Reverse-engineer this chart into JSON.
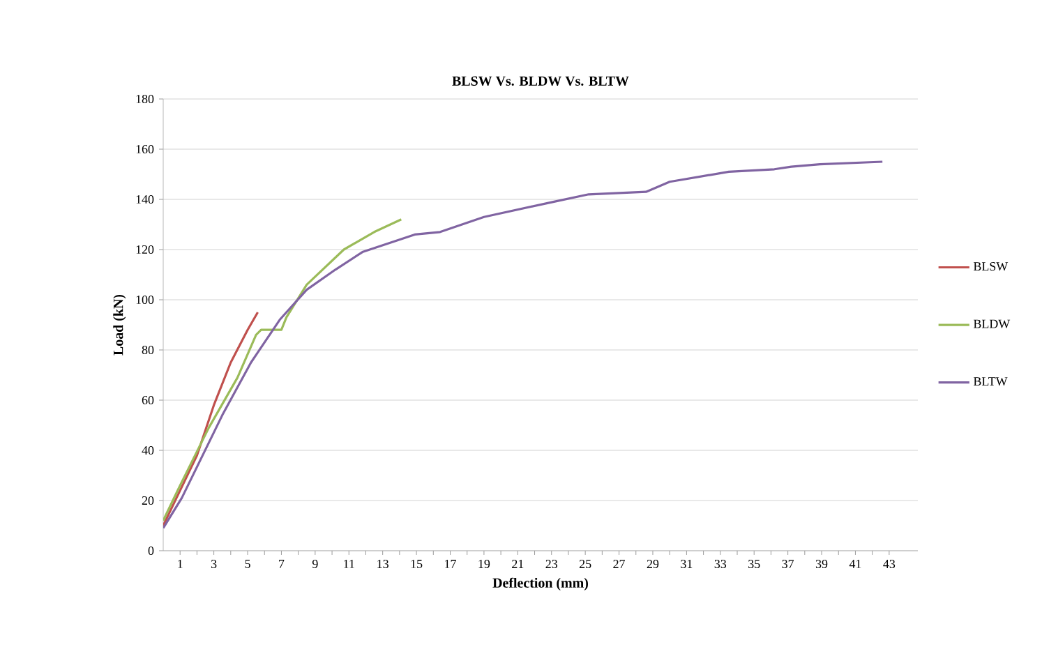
{
  "chart_data": {
    "type": "line",
    "title": "BLSW Vs. BLDW Vs. BLTW",
    "xlabel": "Deflection (mm)",
    "ylabel": "Load (kN)",
    "series": [
      {
        "name": "BLSW",
        "color": "#c0504d",
        "x": [
          0,
          1,
          2,
          3,
          4,
          5,
          5.6
        ],
        "values": [
          10,
          24,
          38,
          58,
          75,
          88,
          95
        ]
      },
      {
        "name": "BLDW",
        "color": "#9bbb59",
        "x": [
          0,
          1,
          2.7,
          4.4,
          5.5,
          5.8,
          7,
          7.3,
          8.5,
          10.7,
          12.5,
          14.1
        ],
        "values": [
          12,
          26,
          49,
          69,
          86,
          88,
          88,
          93,
          106,
          120,
          127,
          132
        ]
      },
      {
        "name": "BLTW",
        "color": "#8064a2",
        "x": [
          0,
          1.1,
          3.5,
          5.2,
          6.9,
          8.5,
          10.2,
          11.8,
          14.9,
          16.4,
          19,
          23.1,
          25.2,
          28.6,
          30,
          33.5,
          36.2,
          37.2,
          38.9,
          42.6
        ],
        "values": [
          9,
          21,
          54,
          75,
          92,
          104,
          112,
          119,
          126,
          127,
          133,
          139,
          142,
          143,
          147,
          151,
          152,
          153,
          154,
          155
        ]
      }
    ],
    "xlim": [
      0,
      44.7
    ],
    "xticks": [
      1,
      3,
      5,
      7,
      9,
      11,
      13,
      15,
      17,
      19,
      21,
      23,
      25,
      27,
      29,
      31,
      33,
      35,
      37,
      39,
      41,
      43
    ],
    "ylim": [
      0,
      180
    ],
    "yticks": [
      0,
      20,
      40,
      60,
      80,
      100,
      120,
      140,
      160,
      180
    ],
    "grid": "y",
    "legend": "right",
    "marker": "none",
    "line_style": "solid"
  }
}
